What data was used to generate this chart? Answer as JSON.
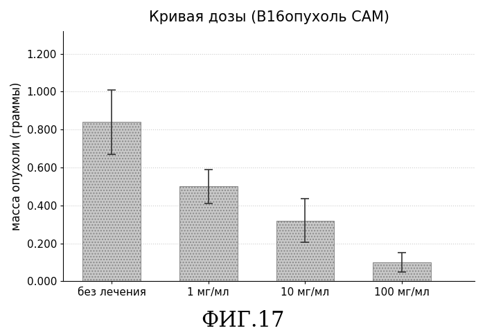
{
  "title": "Кривая дозы (В16опухоль САМ)",
  "ylabel": "масса опухоли (граммы)",
  "fig_label": "ФИГ.17",
  "categories_line1": [
    "без лечения",
    "1",
    "10",
    "100"
  ],
  "categories_line2": [
    "",
    " мг/мл",
    " мг/мл",
    " мг/мл"
  ],
  "values": [
    0.84,
    0.5,
    0.32,
    0.1
  ],
  "errors": [
    0.17,
    0.09,
    0.115,
    0.05
  ],
  "bar_color": "#c8c8c8",
  "ylim": [
    0,
    1.32
  ],
  "yticks": [
    0.0,
    0.2,
    0.4,
    0.6,
    0.8,
    1.0,
    1.2
  ],
  "ytick_labels": [
    "0.000",
    "0.200",
    "0.400",
    "0.600",
    "0.800",
    "1.000",
    "1.200"
  ],
  "bar_positions": [
    1.0,
    3.0,
    5.0,
    7.0
  ],
  "bar_width": 1.2,
  "xlim": [
    0,
    8.5
  ],
  "title_fontsize": 15,
  "label_fontsize": 12,
  "tick_fontsize": 11,
  "fig_label_fontsize": 22,
  "background_color": "#ffffff",
  "errorbar_capsize": 4,
  "errorbar_linewidth": 1.2,
  "errorbar_color": "#333333",
  "grid_color": "#cccccc",
  "grid_style": ":"
}
